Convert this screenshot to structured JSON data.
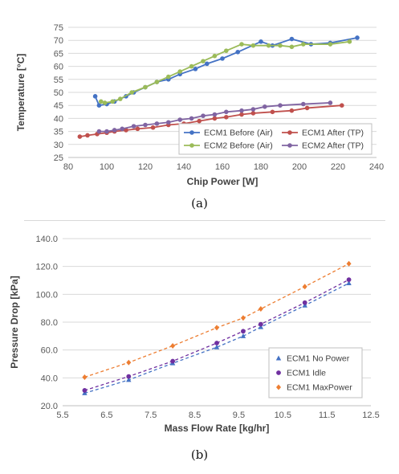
{
  "captions": {
    "a": "(a)",
    "b": "(b)"
  },
  "chart_data": [
    {
      "type": "line",
      "xlabel": "Chip Power [W]",
      "ylabel": "Temperature [°C]",
      "xlim": [
        80,
        240
      ],
      "ylim": [
        25,
        75
      ],
      "xticks": [
        80,
        100,
        120,
        140,
        160,
        180,
        200,
        220,
        240
      ],
      "yticks": [
        25,
        30,
        35,
        40,
        45,
        50,
        55,
        60,
        65,
        70,
        75
      ],
      "grid": "horizontal",
      "legend_position": "bottom-right",
      "series": [
        {
          "name": "ECM1 Before (Air)",
          "color": "#4472c4",
          "x": [
            94,
            96,
            100,
            104,
            110,
            114,
            120,
            126,
            132,
            138,
            146,
            152,
            160,
            168,
            180,
            186,
            196,
            206,
            216,
            230
          ],
          "y": [
            48.5,
            45,
            45.5,
            46.5,
            48.5,
            50,
            52,
            54,
            55,
            57,
            59,
            61,
            63,
            65.5,
            69.5,
            68,
            70.5,
            68.5,
            69,
            71
          ]
        },
        {
          "name": "ECM1 After (TP)",
          "color": "#c0504d",
          "x": [
            86,
            90,
            95,
            100,
            104,
            110,
            116,
            124,
            132,
            140,
            148,
            156,
            162,
            170,
            176,
            186,
            196,
            204,
            222
          ],
          "y": [
            33,
            33.5,
            34,
            34.5,
            35,
            35.5,
            36,
            36.5,
            37.5,
            38,
            39,
            40,
            40.5,
            41.5,
            42,
            42.5,
            43,
            44,
            45
          ]
        },
        {
          "name": "ECM2 Before (Air)",
          "color": "#9bbb59",
          "x": [
            97,
            99,
            103,
            107,
            113,
            120,
            126,
            132,
            138,
            144,
            150,
            156,
            162,
            170,
            176,
            184,
            190,
            196,
            202,
            216,
            226
          ],
          "y": [
            46.5,
            46,
            46.5,
            47.5,
            50,
            52,
            54,
            56,
            58,
            60,
            62,
            64,
            66,
            68.5,
            68,
            68,
            68,
            67.5,
            68.5,
            68.5,
            69.5
          ]
        },
        {
          "name": "ECM2 After (TP)",
          "color": "#8064a2",
          "x": [
            96,
            100,
            104,
            108,
            114,
            120,
            126,
            132,
            138,
            144,
            150,
            156,
            162,
            170,
            176,
            182,
            190,
            202,
            216
          ],
          "y": [
            35,
            35,
            35.5,
            36,
            37,
            37.5,
            38,
            38.5,
            39.5,
            40,
            41,
            41.5,
            42.5,
            43,
            43.5,
            44.5,
            45,
            45.5,
            46
          ]
        }
      ]
    },
    {
      "type": "scatter",
      "xlabel": "Mass Flow Rate [kg/hr]",
      "ylabel": "Pressure Drop [kPa]",
      "xlim": [
        5.5,
        12.5
      ],
      "ylim": [
        20,
        140
      ],
      "xticks": [
        "5.5",
        "6.5",
        "7.5",
        "8.5",
        "9.5",
        "10.5",
        "11.5",
        "12.5"
      ],
      "yticks": [
        "20.0",
        "40.0",
        "60.0",
        "80.0",
        "100.0",
        "120.0",
        "140.0"
      ],
      "grid": "horizontal",
      "legend_position": "bottom-right",
      "trendlines": "dashed",
      "series": [
        {
          "name": "ECM1 No Power",
          "color": "#4472c4",
          "marker": "triangle",
          "x": [
            6,
            7,
            8,
            9,
            9.6,
            10,
            11,
            12
          ],
          "y": [
            29,
            38.5,
            50.5,
            62,
            70,
            76.5,
            92,
            108
          ]
        },
        {
          "name": "ECM1 Idle",
          "color": "#7030a0",
          "marker": "circle",
          "x": [
            6,
            7,
            8,
            9,
            9.6,
            10,
            11,
            12
          ],
          "y": [
            31,
            41,
            52,
            65,
            73.5,
            78.5,
            94,
            110.5
          ]
        },
        {
          "name": "ECM1 MaxPower",
          "color": "#ed7d31",
          "marker": "diamond",
          "x": [
            6,
            7,
            8,
            9,
            9.6,
            10,
            11,
            12
          ],
          "y": [
            40.5,
            51,
            63,
            76,
            83,
            89.5,
            105.5,
            122
          ]
        }
      ]
    }
  ]
}
